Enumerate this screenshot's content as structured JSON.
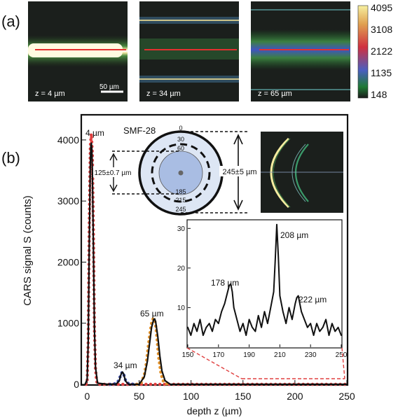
{
  "panel_labels": {
    "a": "(a)",
    "b": "(b)"
  },
  "panel_a": {
    "images": [
      {
        "z_label": "z = 4 µm"
      },
      {
        "z_label": "z = 34 µm"
      },
      {
        "z_label": "z = 65 µm"
      }
    ],
    "scale_bar_label": "50 µm",
    "colorbar": {
      "ticks": [
        "4095",
        "3108",
        "2122",
        "1135",
        "148"
      ],
      "colors": [
        "#f7f0a0",
        "#e0a050",
        "#d03040",
        "#4a5fc0",
        "#1f7a35",
        "#1a1a1a"
      ]
    }
  },
  "chart_data": [
    {
      "type": "line",
      "xlabel": "depth z (µm)",
      "ylabel": "CARS signal S (counts)",
      "xlim": [
        -5,
        250
      ],
      "ylim": [
        0,
        4400
      ],
      "xticks": [
        0,
        50,
        100,
        150,
        200,
        250
      ],
      "yticks": [
        0,
        1000,
        2000,
        3000,
        4000
      ],
      "annotations": [
        "4 µm",
        "34 µm",
        "65 µm"
      ],
      "series": [
        {
          "style": "red-dots",
          "color": "#e04040",
          "x": [
            -1,
            0,
            1,
            2,
            3,
            4,
            5,
            6,
            7,
            8,
            9,
            10,
            12,
            15,
            20,
            25,
            30,
            32,
            33,
            34,
            35,
            36,
            38,
            45,
            55,
            58,
            60,
            62,
            63,
            64,
            65,
            66,
            67,
            68,
            70,
            72,
            75,
            80,
            100,
            150,
            200,
            250
          ],
          "y": [
            0,
            50,
            700,
            2600,
            3900,
            4100,
            3800,
            2500,
            900,
            250,
            60,
            0,
            0,
            0,
            0,
            0,
            0,
            0,
            0,
            0,
            0,
            0,
            0,
            0,
            0,
            0,
            0,
            0,
            0,
            0,
            0,
            0,
            0,
            0,
            0,
            0,
            0,
            0,
            0,
            0,
            0,
            0
          ]
        },
        {
          "style": "blue-dots",
          "color": "#3a4fb0",
          "x": [
            22,
            26,
            29,
            31,
            32,
            33,
            34,
            35,
            36,
            37,
            39,
            42,
            46
          ],
          "y": [
            0,
            5,
            30,
            80,
            140,
            180,
            200,
            170,
            120,
            60,
            20,
            5,
            0
          ]
        },
        {
          "style": "orange-dots",
          "color": "#e0902a",
          "x": [
            48,
            52,
            55,
            57,
            59,
            61,
            62,
            63,
            64,
            65,
            66,
            67,
            68,
            69,
            71,
            73,
            76,
            80
          ],
          "y": [
            0,
            30,
            150,
            350,
            650,
            900,
            1000,
            1060,
            1080,
            1050,
            960,
            800,
            600,
            420,
            180,
            60,
            10,
            0
          ]
        },
        {
          "style": "fit",
          "color": "#111111",
          "x": [
            -2,
            0,
            1,
            2,
            3,
            3.5,
            4,
            4.5,
            5,
            6,
            7,
            8,
            10,
            20,
            28,
            31,
            32,
            33,
            34,
            35,
            36,
            37,
            40,
            50,
            55,
            58,
            60,
            62,
            64,
            65,
            66,
            68,
            70,
            72,
            75,
            80,
            250
          ],
          "y": [
            0,
            80,
            700,
            2300,
            3600,
            3900,
            3950,
            3850,
            3500,
            2200,
            900,
            280,
            20,
            0,
            5,
            60,
            130,
            180,
            200,
            175,
            110,
            50,
            0,
            0,
            120,
            380,
            660,
            930,
            1060,
            1070,
            1020,
            780,
            460,
            220,
            60,
            0,
            0
          ]
        }
      ]
    },
    {
      "type": "line",
      "xlim": [
        150,
        250
      ],
      "ylim": [
        0,
        32
      ],
      "xticks": [
        150,
        170,
        190,
        210,
        230,
        250
      ],
      "yticks": [
        10,
        20,
        30
      ],
      "annotations": [
        "178 µm",
        "208 µm",
        "222 µm"
      ],
      "series": [
        {
          "color": "#111111",
          "x": [
            150,
            152,
            154,
            156,
            158,
            160,
            162,
            164,
            166,
            168,
            170,
            172,
            174,
            176,
            177,
            178,
            179,
            180,
            182,
            184,
            186,
            188,
            190,
            192,
            194,
            196,
            198,
            200,
            202,
            204,
            206,
            207,
            208,
            209,
            210,
            212,
            214,
            216,
            218,
            220,
            221,
            222,
            223,
            224,
            226,
            228,
            230,
            232,
            234,
            236,
            238,
            240,
            242,
            244,
            246,
            248,
            250
          ],
          "y": [
            5,
            3,
            6,
            4,
            7,
            3,
            5,
            6,
            4,
            7,
            6,
            9,
            11,
            14,
            15.5,
            16,
            14,
            10,
            7,
            4,
            6,
            3,
            7,
            5,
            4,
            8,
            5,
            9,
            6,
            10,
            14,
            22,
            31,
            23,
            13,
            9,
            6,
            10,
            7,
            11,
            12.5,
            13,
            11,
            9,
            7,
            5,
            6,
            3,
            6,
            4,
            5,
            7,
            3,
            6,
            4,
            5,
            3
          ]
        }
      ]
    }
  ],
  "inset_diagram": {
    "title": "SMF-28",
    "radial_labels": [
      "0",
      "30",
      "60",
      "185",
      "215",
      "245"
    ],
    "dim_left": "125±0.7 µm",
    "dim_right": "245±5 µm"
  }
}
